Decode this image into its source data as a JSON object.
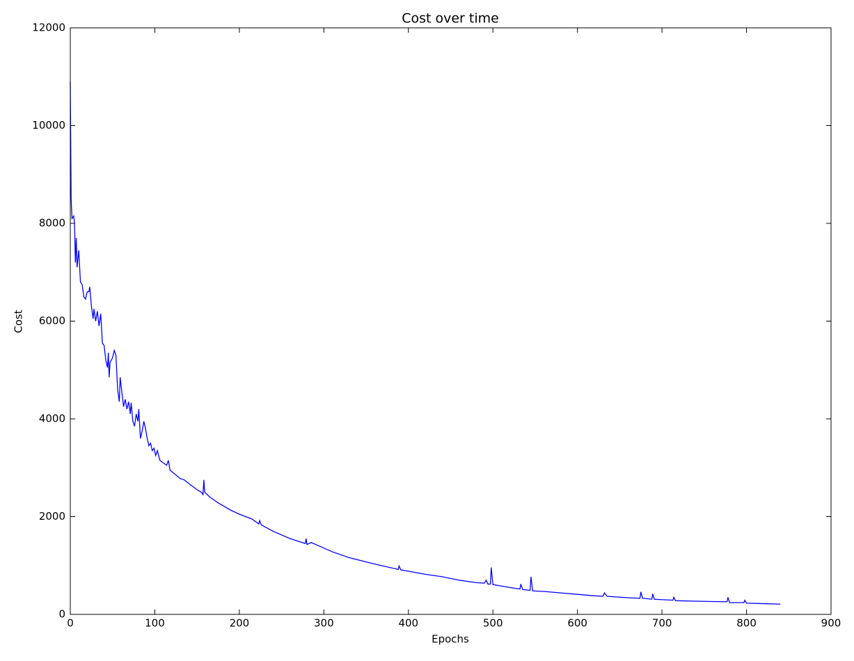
{
  "chart_data": {
    "type": "line",
    "title": "Cost over time",
    "xlabel": "Epochs",
    "ylabel": "Cost",
    "x": [
      0,
      1,
      2,
      4,
      5,
      6,
      7,
      8,
      10,
      12,
      14,
      16,
      18,
      20,
      22,
      23,
      25,
      27,
      28,
      30,
      32,
      34,
      36,
      38,
      40,
      42,
      44,
      45,
      46,
      47,
      50,
      52,
      54,
      56,
      58,
      59,
      61,
      63,
      65,
      67,
      69,
      71,
      72,
      74,
      76,
      78,
      80,
      81,
      83,
      85,
      87,
      89,
      91,
      93,
      95,
      97,
      99,
      101,
      103,
      106,
      110,
      114,
      116,
      118,
      125,
      130,
      135,
      140,
      150,
      155,
      157,
      158,
      159,
      165,
      175,
      190,
      200,
      215,
      223,
      224,
      226,
      240,
      260,
      278,
      279,
      280,
      285,
      297,
      310,
      330,
      360,
      388,
      389,
      391,
      420,
      440,
      460,
      480,
      490,
      492,
      494,
      497,
      498,
      500,
      510,
      520,
      532,
      533,
      535,
      544,
      545,
      547,
      560,
      580,
      600,
      620,
      630,
      632,
      635,
      660,
      674,
      675,
      677,
      688,
      689,
      691,
      713,
      714,
      716,
      740,
      770,
      777,
      778,
      780,
      797,
      798,
      800,
      820,
      840
    ],
    "series": [
      {
        "name": "Cost",
        "color": "#0000ff",
        "values": [
          10900,
          8500,
          8100,
          8150,
          8000,
          7200,
          7700,
          7100,
          7450,
          6800,
          6750,
          6500,
          6450,
          6600,
          6600,
          6700,
          6300,
          6050,
          6250,
          6000,
          6200,
          5900,
          6150,
          5550,
          5500,
          5200,
          5050,
          5350,
          4850,
          5150,
          5250,
          5400,
          5300,
          4600,
          4350,
          4850,
          4550,
          4250,
          4400,
          4200,
          4350,
          4100,
          4330,
          3950,
          3850,
          4100,
          3950,
          4200,
          3600,
          3750,
          3950,
          3800,
          3600,
          3450,
          3500,
          3350,
          3400,
          3250,
          3350,
          3150,
          3100,
          3050,
          3150,
          2950,
          2850,
          2780,
          2750,
          2680,
          2550,
          2500,
          2450,
          2750,
          2500,
          2400,
          2280,
          2130,
          2050,
          1950,
          1850,
          1920,
          1830,
          1700,
          1550,
          1450,
          1550,
          1430,
          1470,
          1380,
          1280,
          1160,
          1030,
          920,
          990,
          910,
          820,
          770,
          700,
          650,
          640,
          700,
          620,
          620,
          960,
          610,
          580,
          550,
          520,
          620,
          510,
          490,
          770,
          480,
          470,
          440,
          410,
          380,
          370,
          440,
          370,
          340,
          330,
          460,
          330,
          310,
          420,
          310,
          290,
          350,
          280,
          270,
          260,
          260,
          350,
          240,
          240,
          290,
          230,
          220,
          210
        ]
      }
    ],
    "xlim": [
      0,
      900
    ],
    "xticks": [
      0,
      100,
      200,
      300,
      400,
      500,
      600,
      700,
      800,
      900
    ],
    "ylim": [
      0,
      12000
    ],
    "yticks": [
      0,
      2000,
      4000,
      6000,
      8000,
      10000,
      12000
    ]
  }
}
